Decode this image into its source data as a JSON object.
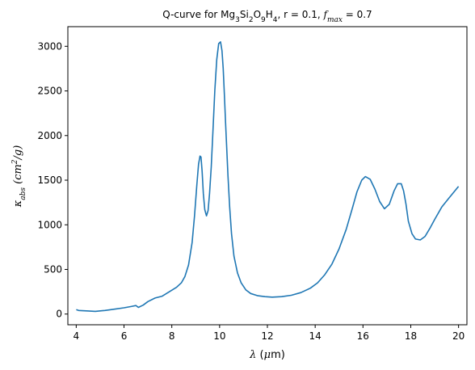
{
  "chart_data": {
    "type": "line",
    "title": {
      "prefix": "Q-curve for Mg",
      "sub1": "3",
      "mid1": "Si",
      "sub2": "2",
      "mid2": "O",
      "sub3": "9",
      "mid3": "H",
      "sub4": "4",
      "r_part": ", r = 0.1, ",
      "f_symbol": "f",
      "f_sub": "max",
      "f_value": " = 0.7"
    },
    "xlabel": {
      "symbol": "λ",
      "unit_open": " (",
      "unit_mu": "μ",
      "unit_rest": "m)"
    },
    "ylabel": {
      "symbol": "κ",
      "sub": "abs",
      "unit": " (cm",
      "sup": "2",
      "unit_end": "/g)"
    },
    "xlim": [
      3.65,
      20.35
    ],
    "ylim": [
      -120,
      3220
    ],
    "xticks": [
      "4",
      "6",
      "8",
      "10",
      "12",
      "14",
      "16",
      "18",
      "20"
    ],
    "yticks": [
      "0",
      "500",
      "1000",
      "1500",
      "2000",
      "2500",
      "3000"
    ],
    "line_color": "#1f77b4",
    "grid": false,
    "series": [
      {
        "x": [
          4.0,
          4.1,
          4.5,
          4.8,
          5.2,
          5.6,
          6.0,
          6.3,
          6.5,
          6.6,
          6.8,
          7.0,
          7.3,
          7.6,
          7.9,
          8.2,
          8.4,
          8.55,
          8.7,
          8.85,
          8.95,
          9.05,
          9.12,
          9.18,
          9.22,
          9.27,
          9.32,
          9.38,
          9.45,
          9.52,
          9.58,
          9.65,
          9.72,
          9.8,
          9.88,
          9.96,
          10.04,
          10.1,
          10.15,
          10.2,
          10.25,
          10.3,
          10.35,
          10.42,
          10.5,
          10.6,
          10.75,
          10.9,
          11.1,
          11.3,
          11.6,
          11.9,
          12.2,
          12.6,
          13.0,
          13.4,
          13.8,
          14.1,
          14.4,
          14.7,
          15.0,
          15.3,
          15.55,
          15.75,
          15.95,
          16.1,
          16.3,
          16.5,
          16.7,
          16.9,
          17.1,
          17.3,
          17.45,
          17.6,
          17.7,
          17.8,
          17.9,
          18.05,
          18.2,
          18.4,
          18.6,
          18.8,
          19.0,
          19.3,
          19.6,
          20.0
        ],
        "y": [
          50,
          40,
          35,
          30,
          40,
          55,
          70,
          85,
          95,
          75,
          100,
          140,
          180,
          200,
          250,
          300,
          350,
          420,
          550,
          800,
          1100,
          1450,
          1680,
          1770,
          1760,
          1600,
          1350,
          1170,
          1100,
          1160,
          1350,
          1650,
          2050,
          2500,
          2850,
          3030,
          3050,
          2950,
          2750,
          2450,
          2150,
          1850,
          1550,
          1200,
          900,
          650,
          460,
          350,
          270,
          230,
          205,
          195,
          190,
          195,
          210,
          240,
          290,
          350,
          440,
          560,
          730,
          950,
          1180,
          1370,
          1500,
          1540,
          1510,
          1400,
          1260,
          1180,
          1230,
          1380,
          1460,
          1460,
          1380,
          1230,
          1040,
          900,
          840,
          830,
          870,
          960,
          1060,
          1200,
          1300,
          1430
        ]
      }
    ]
  }
}
